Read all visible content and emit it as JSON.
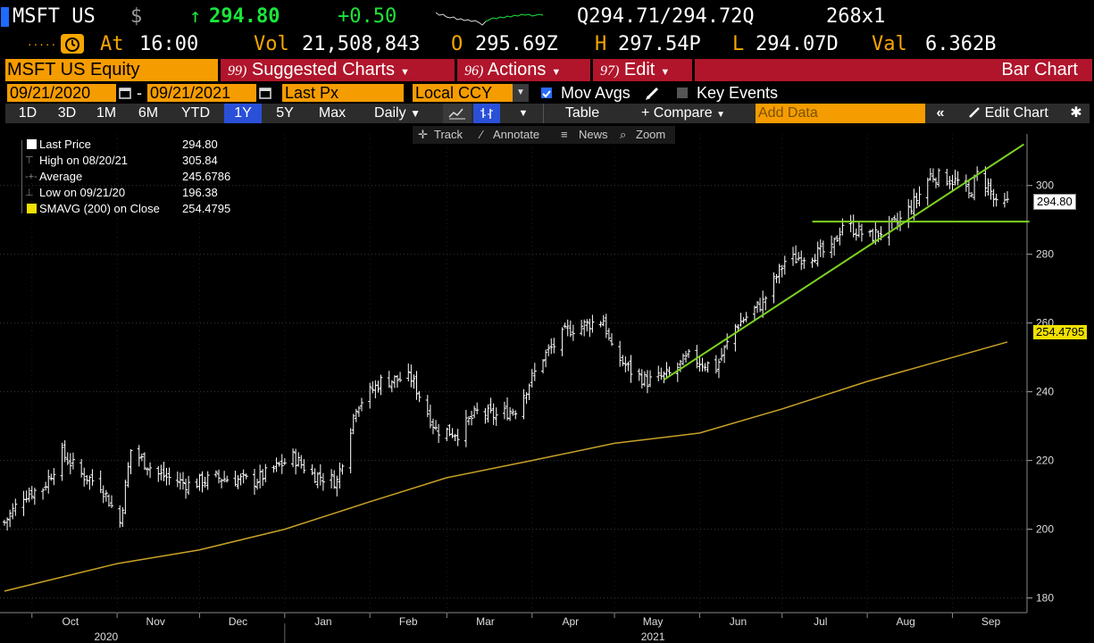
{
  "quote": {
    "ticker": "MSFT US",
    "currency_symbol": "$",
    "arrow": "↑",
    "last": "294.80",
    "change": "+0.50",
    "bid_ask": "Q294.71/294.72Q",
    "size": "268x1",
    "at_label": "At",
    "time": "16:00",
    "vol_label": "Vol",
    "volume": "21,508,843",
    "open_label": "O",
    "open": "295.69Z",
    "high_label": "H",
    "high": "297.54P",
    "low_label": "L",
    "low": "294.07D",
    "val_label": "Val",
    "value": "6.362B"
  },
  "menu": {
    "security": "MSFT US Equity",
    "suggested_num": "99)",
    "suggested": "Suggested Charts",
    "actions_num": "96)",
    "actions": "Actions",
    "edit_num": "97)",
    "edit": "Edit",
    "chart_type": "Bar Chart"
  },
  "settings": {
    "start_date": "09/21/2020",
    "dash": "-",
    "end_date": "09/21/2021",
    "field": "Last Px",
    "currency": "Local CCY",
    "mov_avgs": "Mov Avgs",
    "key_events": "Key Events"
  },
  "toolbar": {
    "periods": [
      "1D",
      "3D",
      "1M",
      "6M",
      "YTD",
      "1Y",
      "5Y",
      "Max"
    ],
    "selected_period": "1Y",
    "frequency": "Daily",
    "table": "Table",
    "compare": "+ Compare",
    "add_data_placeholder": "Add Data",
    "edit_chart": "Edit Chart"
  },
  "tools": {
    "track": "Track",
    "annotate": "Annotate",
    "news": "News",
    "zoom": "Zoom"
  },
  "legend": {
    "last_price_label": "Last Price",
    "last_price": "294.80",
    "high_label": "High on 08/20/21",
    "high": "305.84",
    "average_label": "Average",
    "average": "245.6786",
    "low_label": "Low on 09/21/20",
    "low": "196.38",
    "sma_label": "SMAVG (200)  on Close",
    "sma": "254.4795"
  },
  "chart_data": {
    "type": "bar",
    "y_ticks": [
      180,
      200,
      220,
      240,
      260,
      280,
      300
    ],
    "ylim": [
      176,
      315
    ],
    "x_month_labels": [
      "Oct",
      "Nov",
      "Dec",
      "Jan",
      "Feb",
      "Mar",
      "Apr",
      "May",
      "Jun",
      "Jul",
      "Aug",
      "Sep"
    ],
    "x_year_labels": [
      "2020",
      "2021"
    ],
    "last_price_tag": "294.80",
    "sma_tag": "254.4795",
    "price_anchors": [
      {
        "date": "2020-09-21",
        "close": 202
      },
      {
        "date": "2020-09-28",
        "close": 210
      },
      {
        "date": "2020-10-05",
        "close": 212
      },
      {
        "date": "2020-10-12",
        "close": 222
      },
      {
        "date": "2020-10-19",
        "close": 216
      },
      {
        "date": "2020-10-26",
        "close": 213
      },
      {
        "date": "2020-11-02",
        "close": 202
      },
      {
        "date": "2020-11-06",
        "close": 223
      },
      {
        "date": "2020-11-16",
        "close": 216
      },
      {
        "date": "2020-11-27",
        "close": 213
      },
      {
        "date": "2020-12-07",
        "close": 215
      },
      {
        "date": "2020-12-21",
        "close": 214
      },
      {
        "date": "2021-01-04",
        "close": 221
      },
      {
        "date": "2021-01-11",
        "close": 216
      },
      {
        "date": "2021-01-20",
        "close": 214
      },
      {
        "date": "2021-01-27",
        "close": 236
      },
      {
        "date": "2021-02-05",
        "close": 243
      },
      {
        "date": "2021-02-16",
        "close": 244
      },
      {
        "date": "2021-02-25",
        "close": 229
      },
      {
        "date": "2021-03-05",
        "close": 228
      },
      {
        "date": "2021-03-12",
        "close": 234
      },
      {
        "date": "2021-03-19",
        "close": 233
      },
      {
        "date": "2021-03-26",
        "close": 235
      },
      {
        "date": "2021-04-05",
        "close": 250
      },
      {
        "date": "2021-04-14",
        "close": 258
      },
      {
        "date": "2021-04-27",
        "close": 261
      },
      {
        "date": "2021-04-30",
        "close": 252
      },
      {
        "date": "2021-05-07",
        "close": 246
      },
      {
        "date": "2021-05-13",
        "close": 243
      },
      {
        "date": "2021-05-21",
        "close": 245
      },
      {
        "date": "2021-05-28",
        "close": 250
      },
      {
        "date": "2021-06-07",
        "close": 247
      },
      {
        "date": "2021-06-14",
        "close": 259
      },
      {
        "date": "2021-06-24",
        "close": 266
      },
      {
        "date": "2021-07-02",
        "close": 278
      },
      {
        "date": "2021-07-12",
        "close": 280
      },
      {
        "date": "2021-07-19",
        "close": 281
      },
      {
        "date": "2021-07-23",
        "close": 289
      },
      {
        "date": "2021-08-02",
        "close": 285
      },
      {
        "date": "2021-08-12",
        "close": 289
      },
      {
        "date": "2021-08-19",
        "close": 296
      },
      {
        "date": "2021-08-24",
        "close": 303
      },
      {
        "date": "2021-08-30",
        "close": 302
      },
      {
        "date": "2021-09-03",
        "close": 301
      },
      {
        "date": "2021-09-07",
        "close": 297
      },
      {
        "date": "2021-09-10",
        "close": 303
      },
      {
        "date": "2021-09-14",
        "close": 300
      },
      {
        "date": "2021-09-17",
        "close": 294
      },
      {
        "date": "2021-09-21",
        "close": 294.8
      }
    ],
    "sma_200": [
      {
        "date": "2020-09-21",
        "value": 182
      },
      {
        "date": "2020-11-01",
        "value": 190
      },
      {
        "date": "2020-12-01",
        "value": 194
      },
      {
        "date": "2021-01-01",
        "value": 200
      },
      {
        "date": "2021-02-01",
        "value": 208
      },
      {
        "date": "2021-03-01",
        "value": 215
      },
      {
        "date": "2021-04-01",
        "value": 220
      },
      {
        "date": "2021-05-01",
        "value": 225
      },
      {
        "date": "2021-06-01",
        "value": 228
      },
      {
        "date": "2021-07-01",
        "value": 235
      },
      {
        "date": "2021-08-01",
        "value": 243
      },
      {
        "date": "2021-09-21",
        "value": 254.48
      }
    ],
    "trend_lines": [
      {
        "from": {
          "date": "2021-05-19",
          "value": 243.5
        },
        "to": {
          "date": "2021-09-27",
          "value": 312
        }
      },
      {
        "from": {
          "date": "2021-07-12",
          "value": 289.5
        },
        "to": {
          "date": "2021-09-29",
          "value": 289.5
        }
      }
    ],
    "grid": true,
    "legend_position": "top-left",
    "colors": {
      "bars": "#ffffff",
      "sma": "#c9a227",
      "trend": "#7ed321",
      "sma_tag": "#f0e000"
    }
  }
}
